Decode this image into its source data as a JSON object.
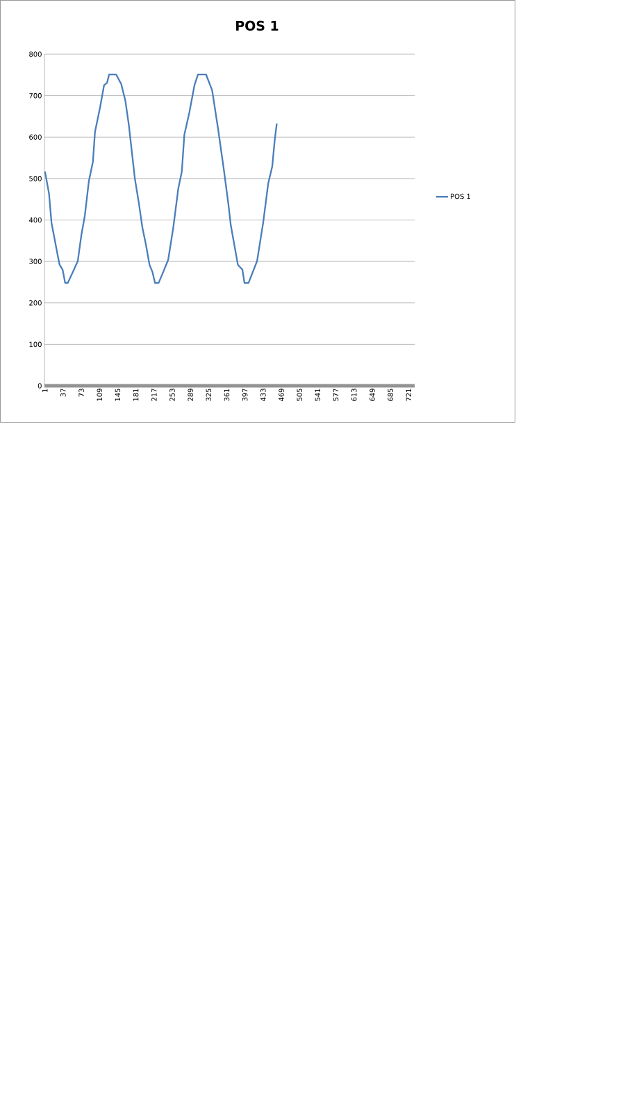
{
  "chart_data": {
    "type": "line",
    "title": "POS 1",
    "x": [
      1,
      9,
      14,
      27,
      30,
      36,
      41,
      46,
      56,
      66,
      73,
      80,
      88,
      96,
      100,
      110,
      118,
      124,
      128,
      142,
      152,
      160,
      167,
      179,
      187,
      194,
      201,
      208,
      214,
      219,
      226,
      235,
      245,
      255,
      265,
      272,
      277,
      287,
      297,
      304,
      320,
      332,
      344,
      355,
      364,
      369,
      383,
      392,
      396,
      404,
      421,
      433,
      443,
      451,
      456,
      460
    ],
    "series": [
      {
        "name": "POS 1",
        "color": "#4a7ebb",
        "values": [
          517,
          464,
          393,
          310,
          292,
          280,
          248,
          248,
          274,
          301,
          363,
          411,
          494,
          541,
          612,
          671,
          725,
          731,
          751,
          751,
          728,
          689,
          630,
          500,
          440,
          381,
          340,
          292,
          274,
          248,
          248,
          274,
          304,
          381,
          476,
          517,
          606,
          660,
          725,
          751,
          751,
          713,
          618,
          523,
          440,
          387,
          292,
          280,
          248,
          248,
          301,
          393,
          488,
          529,
          594,
          633
        ]
      }
    ],
    "xlim": [
      0,
      733
    ],
    "xticks": [
      1,
      37,
      73,
      109,
      145,
      181,
      217,
      253,
      289,
      325,
      361,
      397,
      433,
      469,
      505,
      541,
      577,
      613,
      649,
      685,
      721
    ],
    "ylim": [
      0,
      800
    ],
    "yticks": [
      0,
      100,
      200,
      300,
      400,
      500,
      600,
      700,
      800
    ],
    "grid": "y",
    "legend": "right",
    "line_style": "solid",
    "marker": "none"
  }
}
